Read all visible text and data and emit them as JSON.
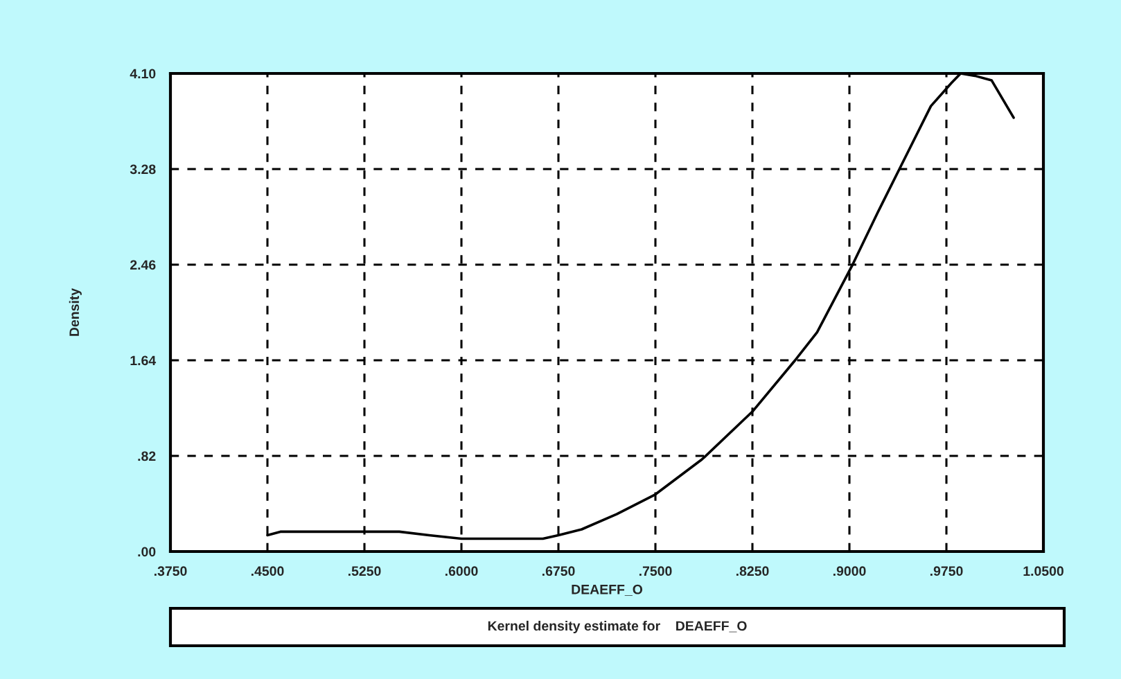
{
  "chart_data": {
    "type": "line",
    "xlabel": "DEAEFF_O",
    "ylabel": "Density",
    "annotations": [
      "Kernel density estimate for    DEAEFF_O"
    ],
    "series": [
      {
        "color": "#000000",
        "x": [
          0.45,
          0.46,
          0.5,
          0.552,
          0.575,
          0.6,
          0.63,
          0.663,
          0.675,
          0.693,
          0.72,
          0.75,
          0.786,
          0.825,
          0.858,
          0.875,
          0.902,
          0.922,
          0.94,
          0.963,
          0.979,
          0.986,
          0.997,
          1.01,
          1.027
        ],
        "values": [
          0.14,
          0.17,
          0.17,
          0.17,
          0.14,
          0.11,
          0.11,
          0.11,
          0.14,
          0.19,
          0.32,
          0.49,
          0.79,
          1.2,
          1.64,
          1.88,
          2.45,
          2.91,
          3.31,
          3.82,
          4.02,
          4.1,
          4.08,
          4.04,
          3.72
        ]
      }
    ],
    "xlim": [
      0.375,
      1.05
    ],
    "xticks": [
      {
        "value": 0.375,
        "label": ".3750"
      },
      {
        "value": 0.45,
        "label": ".4500"
      },
      {
        "value": 0.525,
        "label": ".5250"
      },
      {
        "value": 0.6,
        "label": ".6000"
      },
      {
        "value": 0.675,
        "label": ".6750"
      },
      {
        "value": 0.75,
        "label": ".7500"
      },
      {
        "value": 0.825,
        "label": ".8250"
      },
      {
        "value": 0.9,
        "label": ".9000"
      },
      {
        "value": 0.975,
        "label": ".9750"
      },
      {
        "value": 1.05,
        "label": "1.0500"
      }
    ],
    "ylim": [
      0,
      4.1
    ],
    "yticks": [
      {
        "value": 0,
        "label": ".00"
      },
      {
        "value": 0.82,
        "label": ".82"
      },
      {
        "value": 1.64,
        "label": "1.64"
      },
      {
        "value": 2.46,
        "label": "2.46"
      },
      {
        "value": 3.28,
        "label": "3.28"
      },
      {
        "value": 4.1,
        "label": "4.10"
      }
    ],
    "grid": true,
    "line_style": "solid",
    "marker": "none"
  }
}
